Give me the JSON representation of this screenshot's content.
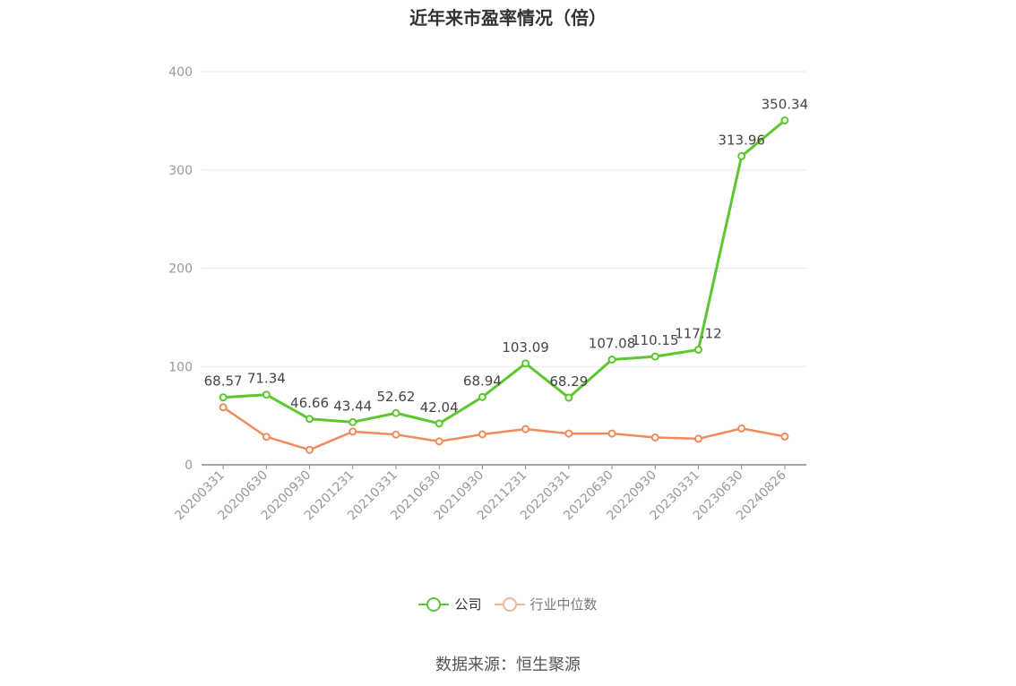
{
  "colors": {
    "company": "#5cc72f",
    "industry": "#f08b5b",
    "industry_legend": "#f4b49a",
    "axis": "#888888",
    "grid": "#e6e9f0",
    "text": "#555555"
  },
  "legend": {
    "company": "公司",
    "industry": "行业中位数"
  },
  "source": "数据来源：恒生聚源",
  "chart_data": {
    "type": "line",
    "title": "近年来市盈率情况（倍）",
    "categories": [
      "20200331",
      "20200630",
      "20200930",
      "20201231",
      "20210331",
      "20210630",
      "20210930",
      "20211231",
      "20220331",
      "20220630",
      "20220930",
      "20230331",
      "20230630",
      "20240826"
    ],
    "ylim": [
      0,
      400
    ],
    "yticks": [
      "0",
      "100",
      "200",
      "300",
      "400"
    ],
    "grid": true,
    "legend_position": "bottom",
    "series": [
      {
        "name": "公司",
        "values": [
          68.57,
          71.34,
          46.66,
          43.44,
          52.62,
          42.04,
          68.94,
          103.09,
          68.29,
          107.08,
          110.15,
          117.12,
          313.96,
          350.34
        ],
        "labels": [
          "68.57",
          "71.34",
          "46.66",
          "43.44",
          "52.62",
          "42.04",
          "68.94",
          "103.09",
          "68.29",
          "107.08",
          "110.15",
          "117.12",
          "313.96",
          "350.34"
        ]
      },
      {
        "name": "行业中位数",
        "values": [
          58.5,
          28.5,
          15.2,
          33.8,
          30.8,
          23.8,
          31.0,
          36.3,
          31.8,
          31.8,
          27.8,
          26.5,
          37.0,
          28.8
        ]
      }
    ]
  }
}
